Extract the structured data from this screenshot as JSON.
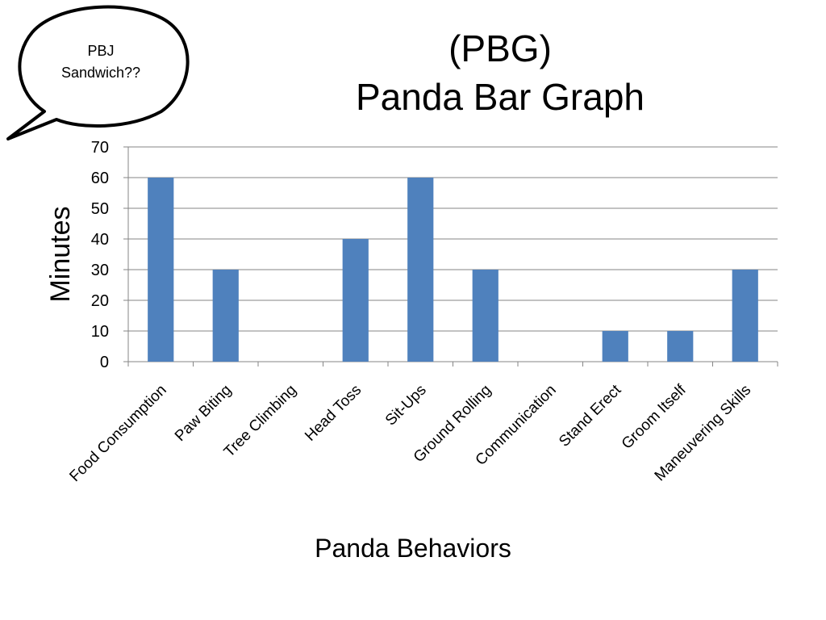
{
  "slide": {
    "title_line1": "(PBG)",
    "title_line2": "Panda Bar Graph",
    "bubble_line1": "PBJ",
    "bubble_line2": "Sandwich??"
  },
  "chart_data": {
    "type": "bar",
    "title": "",
    "xlabel": "Panda Behaviors",
    "ylabel": "Minutes",
    "ylim": [
      0,
      70
    ],
    "yticks": [
      0,
      10,
      20,
      30,
      40,
      50,
      60,
      70
    ],
    "grid": true,
    "legend": "none",
    "categories": [
      "Food Consumption",
      "Paw Biting",
      "Tree Climbing",
      "Head Toss",
      "Sit-Ups",
      "Ground Rolling",
      "Communication",
      "Stand Erect",
      "Groom Itself",
      "Maneuvering Skills"
    ],
    "values": [
      60,
      30,
      0,
      40,
      60,
      30,
      0,
      10,
      10,
      30
    ],
    "bar_color": "#4F81BD"
  }
}
